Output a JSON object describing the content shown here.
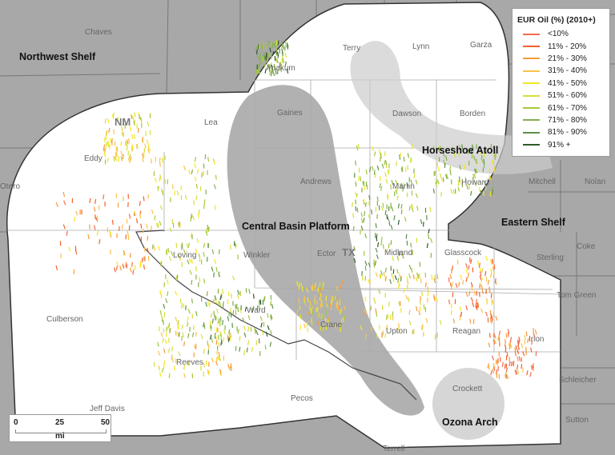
{
  "legend": {
    "title": "EUR Oil (%) (2010+)",
    "items": [
      {
        "label": "<10%",
        "color": "#f26b4f"
      },
      {
        "label": "11% - 20%",
        "color": "#f4602c"
      },
      {
        "label": "21% - 30%",
        "color": "#f79a3a"
      },
      {
        "label": "31% - 40%",
        "color": "#fbc24a"
      },
      {
        "label": "41% - 50%",
        "color": "#f5e61c"
      },
      {
        "label": "51% - 60%",
        "color": "#d7df3a"
      },
      {
        "label": "61% - 70%",
        "color": "#a6c83a"
      },
      {
        "label": "71% - 80%",
        "color": "#83b04f"
      },
      {
        "label": "81% - 90%",
        "color": "#5d8f4c"
      },
      {
        "label": "91% +",
        "color": "#2f5a2e"
      }
    ]
  },
  "scale_bar": {
    "ticks": [
      "0",
      "25",
      "50"
    ],
    "unit": "mi"
  },
  "state_labels": [
    "NM",
    "TX"
  ],
  "region_labels": [
    "Northwest Shelf",
    "Horseshoe Atoll",
    "Central Basin Platform",
    "Eastern Shelf",
    "Ozona Arch"
  ],
  "county_labels": [
    "Chaves",
    "Yoakum",
    "Terry",
    "Lynn",
    "Garza",
    "Lea",
    "Gaines",
    "Dawson",
    "Borden",
    "Eddy",
    "Andrews",
    "Martin",
    "Howard",
    "Mitchell",
    "Nolan",
    "Otero",
    "Winkler",
    "Ector",
    "Midland",
    "Glasscock",
    "Sterling",
    "Coke",
    "Loving",
    "Tom Green",
    "Culberson",
    "Ward",
    "Crane",
    "Upton",
    "Reagan",
    "Irion",
    "Reeves",
    "Pecos",
    "Crockett",
    "Schleicher",
    "Jeff Davis",
    "Sutton",
    "Terrell"
  ]
}
